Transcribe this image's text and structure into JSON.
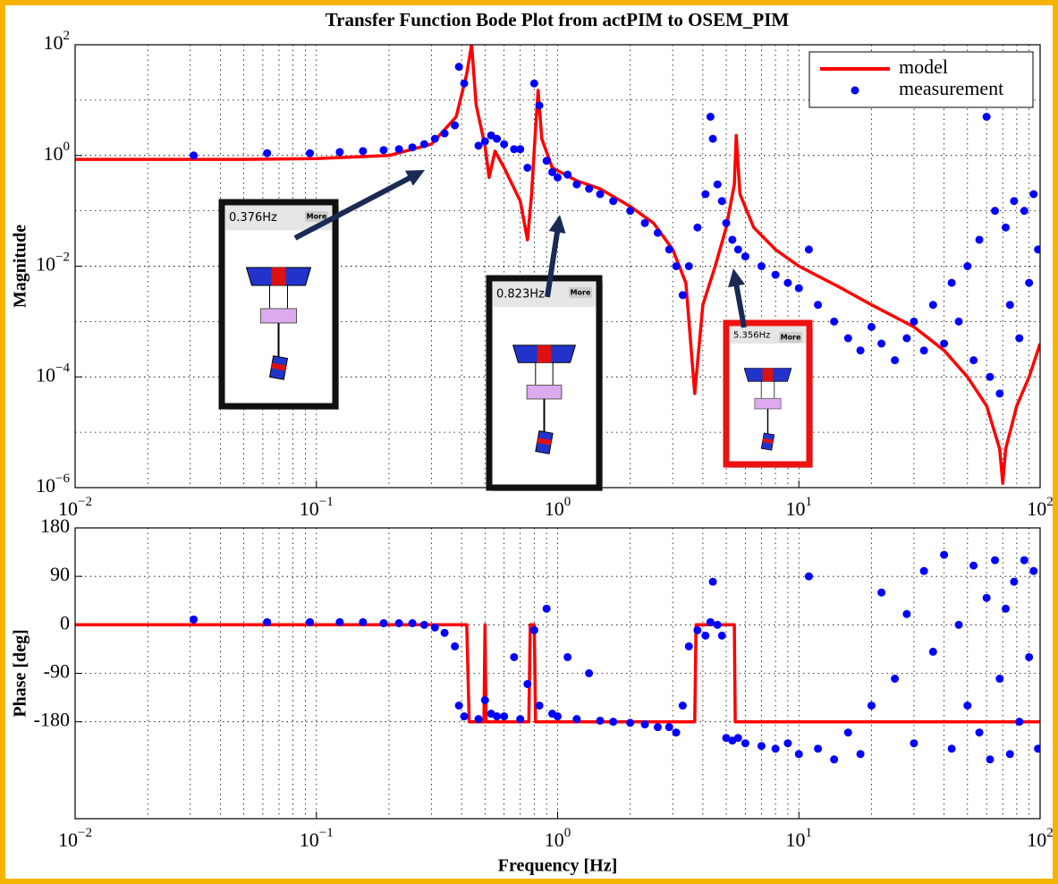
{
  "chart_data": [
    {
      "type": "line",
      "title": "Transfer Function Bode Plot from actPIM to OSEM_PIM",
      "ylabel": "Magnitude",
      "log_x": true,
      "log_y": true,
      "grid": true,
      "legend": "upper right",
      "xlim": [
        0.01,
        100
      ],
      "ylim": [
        1e-06,
        100
      ],
      "xticks": [
        {
          "value": 0.01,
          "label": "10",
          "exponent": "−2"
        },
        {
          "value": 0.1,
          "label": "10",
          "exponent": "−1"
        },
        {
          "value": 1,
          "label": "10",
          "exponent": "0"
        },
        {
          "value": 10,
          "label": "10",
          "exponent": "1"
        },
        {
          "value": 100,
          "label": "10",
          "exponent": "2"
        }
      ],
      "yticks": [
        {
          "value": 1e-06,
          "label": "10",
          "exponent": "−6"
        },
        {
          "value": 0.0001,
          "label": "10",
          "exponent": "−4"
        },
        {
          "value": 0.01,
          "label": "10",
          "exponent": "−2"
        },
        {
          "value": 1,
          "label": "10",
          "exponent": "0"
        },
        {
          "value": 100,
          "label": "10",
          "exponent": "2"
        }
      ],
      "annotations": [
        {
          "text": "0.376Hz",
          "button": "More"
        },
        {
          "text": "0.823Hz",
          "button": "More"
        },
        {
          "text": "5.356Hz",
          "button": "More"
        }
      ],
      "series": [
        {
          "name": "model",
          "color": "#ff0000",
          "style": "line",
          "x": [
            0.01,
            0.05,
            0.1,
            0.2,
            0.3,
            0.38,
            0.42,
            0.44,
            0.46,
            0.5,
            0.52,
            0.55,
            0.6,
            0.7,
            0.75,
            0.78,
            0.81,
            0.83,
            0.86,
            0.95,
            1.2,
            1.5,
            2,
            2.5,
            3,
            3.4,
            3.7,
            4,
            4.5,
            5,
            5.4,
            5.5,
            5.7,
            6.5,
            8,
            10,
            15,
            20,
            30,
            40,
            50,
            60,
            68,
            70,
            72,
            80,
            90,
            100
          ],
          "values": [
            0.85,
            0.85,
            0.88,
            1.0,
            1.6,
            5,
            30,
            100,
            8,
            1.5,
            0.4,
            1.2,
            0.6,
            0.15,
            0.03,
            0.2,
            3,
            15,
            2,
            0.6,
            0.35,
            0.25,
            0.12,
            0.06,
            0.02,
            0.005,
            5e-05,
            0.002,
            0.01,
            0.05,
            0.3,
            2.3,
            0.2,
            0.05,
            0.02,
            0.01,
            0.004,
            0.002,
            0.0008,
            0.0003,
            0.0001,
            3e-05,
            5e-06,
            1.2e-06,
            5e-06,
            3e-05,
            0.0001,
            0.0004
          ]
        },
        {
          "name": "measurement",
          "color": "#0000ff",
          "style": "scatter",
          "x": [
            0.031,
            0.0625,
            0.094,
            0.125,
            0.156,
            0.19,
            0.22,
            0.25,
            0.28,
            0.31,
            0.34,
            0.375,
            0.39,
            0.41,
            0.47,
            0.5,
            0.53,
            0.56,
            0.6,
            0.66,
            0.7,
            0.75,
            0.8,
            0.84,
            0.9,
            0.95,
            1.0,
            1.1,
            1.2,
            1.35,
            1.5,
            1.7,
            2.0,
            2.3,
            2.6,
            2.9,
            3.1,
            3.3,
            3.5,
            3.8,
            4.1,
            4.3,
            4.4,
            4.6,
            4.8,
            5.0,
            5.3,
            5.6,
            6.0,
            7,
            8,
            9,
            10,
            11,
            12,
            14,
            16,
            18,
            20,
            22,
            25,
            28,
            30,
            33,
            36,
            40,
            43,
            46,
            50,
            53,
            56,
            60,
            62,
            65,
            68,
            72,
            75,
            78,
            82,
            86,
            90,
            94,
            98
          ],
          "values": [
            1.0,
            1.1,
            1.1,
            1.15,
            1.2,
            1.25,
            1.3,
            1.4,
            1.6,
            2.0,
            2.5,
            3.5,
            40,
            20,
            1.5,
            1.8,
            2.3,
            2.0,
            1.6,
            1.3,
            1.3,
            0.6,
            20,
            8,
            0.8,
            0.5,
            0.4,
            0.45,
            0.3,
            0.25,
            0.2,
            0.15,
            0.1,
            0.06,
            0.04,
            0.02,
            0.01,
            0.003,
            0.01,
            0.05,
            0.2,
            5,
            2,
            0.3,
            0.15,
            0.06,
            0.03,
            0.02,
            0.015,
            0.01,
            0.007,
            0.005,
            0.004,
            0.02,
            0.002,
            0.001,
            0.0005,
            0.0003,
            0.0008,
            0.0004,
            0.0002,
            0.0005,
            0.001,
            0.0003,
            0.002,
            0.0004,
            0.005,
            0.001,
            0.01,
            0.0002,
            0.03,
            5,
            0.0001,
            0.1,
            5e-05,
            0.05,
            0.002,
            0.15,
            0.0005,
            0.1,
            0.005,
            0.2,
            0.02
          ]
        }
      ]
    },
    {
      "type": "line",
      "ylabel": "Phase [deg]",
      "xlabel": "Frequency [Hz]",
      "log_x": true,
      "log_y": false,
      "grid": true,
      "xlim": [
        0.01,
        100
      ],
      "ylim": [
        -360,
        180
      ],
      "xticks": [
        {
          "value": 0.01,
          "label": "10",
          "exponent": "−2"
        },
        {
          "value": 0.1,
          "label": "10",
          "exponent": "−1"
        },
        {
          "value": 1,
          "label": "10",
          "exponent": "0"
        },
        {
          "value": 10,
          "label": "10",
          "exponent": "1"
        },
        {
          "value": 100,
          "label": "10",
          "exponent": "2"
        }
      ],
      "yticks": [
        -180,
        -90,
        0,
        90,
        180
      ],
      "series": [
        {
          "color": "#ff0000",
          "style": "line",
          "x": [
            0.01,
            0.42,
            0.43,
            0.495,
            0.5,
            0.505,
            0.51,
            0.76,
            0.77,
            0.8,
            0.81,
            3.7,
            3.75,
            5.4,
            5.45,
            100
          ],
          "values": [
            0,
            0,
            -180,
            -180,
            0,
            -180,
            -180,
            -180,
            0,
            0,
            -180,
            -180,
            0,
            0,
            -180,
            -180
          ]
        },
        {
          "color": "#0000ff",
          "style": "scatter",
          "x": [
            0.031,
            0.0625,
            0.094,
            0.125,
            0.156,
            0.19,
            0.22,
            0.25,
            0.28,
            0.31,
            0.34,
            0.375,
            0.39,
            0.41,
            0.47,
            0.5,
            0.53,
            0.56,
            0.6,
            0.66,
            0.7,
            0.75,
            0.8,
            0.84,
            0.9,
            0.95,
            1.0,
            1.1,
            1.2,
            1.35,
            1.5,
            1.7,
            2.0,
            2.3,
            2.6,
            2.9,
            3.1,
            3.3,
            3.5,
            3.8,
            4.1,
            4.3,
            4.4,
            4.6,
            4.8,
            5.0,
            5.3,
            5.6,
            6.0,
            7,
            8,
            9,
            10,
            11,
            12,
            14,
            16,
            18,
            20,
            22,
            25,
            28,
            30,
            33,
            36,
            40,
            43,
            46,
            50,
            53,
            56,
            60,
            62,
            65,
            68,
            72,
            75,
            78,
            82,
            86,
            90,
            94,
            98
          ],
          "values": [
            10,
            5,
            5,
            5,
            5,
            3,
            3,
            3,
            0,
            -5,
            -15,
            -40,
            -150,
            -170,
            -175,
            -140,
            -165,
            -170,
            -170,
            -60,
            -175,
            -110,
            -10,
            -150,
            30,
            -165,
            -170,
            -60,
            -175,
            -90,
            -178,
            -180,
            -182,
            -185,
            -190,
            -190,
            -200,
            -150,
            -40,
            -10,
            -20,
            5,
            80,
            0,
            -20,
            -210,
            -215,
            -210,
            -220,
            -225,
            -230,
            -220,
            -240,
            90,
            -230,
            -250,
            -200,
            -240,
            -150,
            60,
            -100,
            20,
            -220,
            100,
            -50,
            130,
            -230,
            0,
            -150,
            110,
            -200,
            50,
            -250,
            120,
            -100,
            30,
            -240,
            80,
            -180,
            120,
            -60,
            100,
            -230
          ]
        }
      ]
    }
  ]
}
